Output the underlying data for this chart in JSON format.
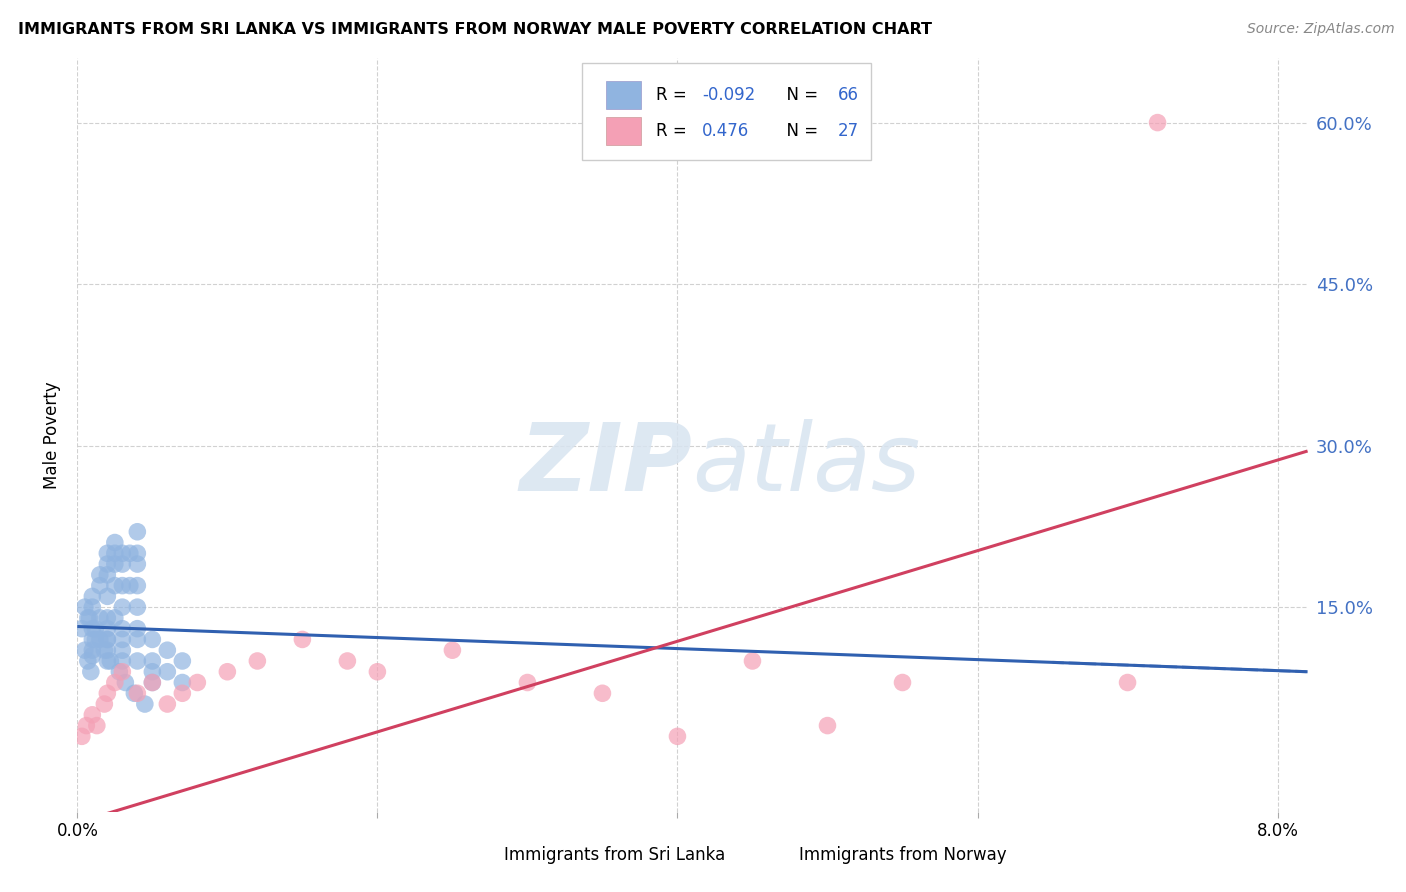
{
  "title": "IMMIGRANTS FROM SRI LANKA VS IMMIGRANTS FROM NORWAY MALE POVERTY CORRELATION CHART",
  "source": "Source: ZipAtlas.com",
  "ylabel": "Male Poverty",
  "xlim": [
    0.0,
    0.082
  ],
  "ylim": [
    -0.04,
    0.66
  ],
  "ytick_vals": [
    0.15,
    0.3,
    0.45,
    0.6
  ],
  "ytick_labels": [
    "15.0%",
    "30.0%",
    "45.0%",
    "60.0%"
  ],
  "xtick_vals": [
    0.0,
    0.02,
    0.04,
    0.06,
    0.08
  ],
  "xtick_labels": [
    "0.0%",
    "",
    "",
    "",
    "8.0%"
  ],
  "grid_color": "#cccccc",
  "background_color": "#ffffff",
  "sri_lanka_color": "#90b4e0",
  "norway_color": "#f4a0b5",
  "sri_lanka_line_color": "#3060b0",
  "norway_line_color": "#d04060",
  "sri_lanka_R": -0.092,
  "sri_lanka_N": 66,
  "norway_R": 0.476,
  "norway_N": 27,
  "legend_sri_lanka": "Immigrants from Sri Lanka",
  "legend_norway": "Immigrants from Norway",
  "sl_line_x0": 0.0,
  "sl_line_y0": 0.132,
  "sl_line_x1": 0.082,
  "sl_line_y1": 0.09,
  "no_line_x0": 0.0,
  "no_line_y0": -0.05,
  "no_line_x1": 0.082,
  "no_line_y1": 0.295,
  "sl_x": [
    0.0003,
    0.0005,
    0.0007,
    0.001,
    0.001,
    0.001,
    0.001,
    0.001,
    0.001,
    0.0015,
    0.0015,
    0.0015,
    0.0015,
    0.002,
    0.002,
    0.002,
    0.002,
    0.002,
    0.002,
    0.002,
    0.002,
    0.002,
    0.0025,
    0.0025,
    0.0025,
    0.0025,
    0.0025,
    0.003,
    0.003,
    0.003,
    0.003,
    0.003,
    0.003,
    0.003,
    0.0035,
    0.0035,
    0.004,
    0.004,
    0.004,
    0.004,
    0.004,
    0.004,
    0.004,
    0.0005,
    0.0007,
    0.0009,
    0.0012,
    0.0018,
    0.0022,
    0.0028,
    0.0032,
    0.0038,
    0.0045,
    0.005,
    0.005,
    0.005,
    0.006,
    0.006,
    0.007,
    0.007,
    0.0008,
    0.0012,
    0.002,
    0.003,
    0.004,
    0.005
  ],
  "sl_y": [
    0.13,
    0.15,
    0.14,
    0.16,
    0.15,
    0.13,
    0.12,
    0.11,
    0.105,
    0.18,
    0.17,
    0.14,
    0.12,
    0.2,
    0.19,
    0.18,
    0.16,
    0.14,
    0.13,
    0.12,
    0.11,
    0.1,
    0.21,
    0.2,
    0.19,
    0.17,
    0.14,
    0.2,
    0.19,
    0.17,
    0.15,
    0.13,
    0.12,
    0.1,
    0.2,
    0.17,
    0.22,
    0.2,
    0.19,
    0.17,
    0.15,
    0.13,
    0.12,
    0.11,
    0.1,
    0.09,
    0.12,
    0.11,
    0.1,
    0.09,
    0.08,
    0.07,
    0.06,
    0.12,
    0.1,
    0.08,
    0.11,
    0.09,
    0.1,
    0.08,
    0.14,
    0.13,
    0.12,
    0.11,
    0.1,
    0.09
  ],
  "no_x": [
    0.0003,
    0.0006,
    0.001,
    0.0013,
    0.0018,
    0.002,
    0.0025,
    0.003,
    0.004,
    0.005,
    0.006,
    0.007,
    0.008,
    0.01,
    0.012,
    0.015,
    0.018,
    0.02,
    0.025,
    0.03,
    0.035,
    0.04,
    0.045,
    0.05,
    0.055,
    0.07,
    0.072
  ],
  "no_y": [
    0.03,
    0.04,
    0.05,
    0.04,
    0.06,
    0.07,
    0.08,
    0.09,
    0.07,
    0.08,
    0.06,
    0.07,
    0.08,
    0.09,
    0.1,
    0.12,
    0.1,
    0.09,
    0.11,
    0.08,
    0.07,
    0.03,
    0.1,
    0.04,
    0.08,
    0.08,
    0.6
  ]
}
